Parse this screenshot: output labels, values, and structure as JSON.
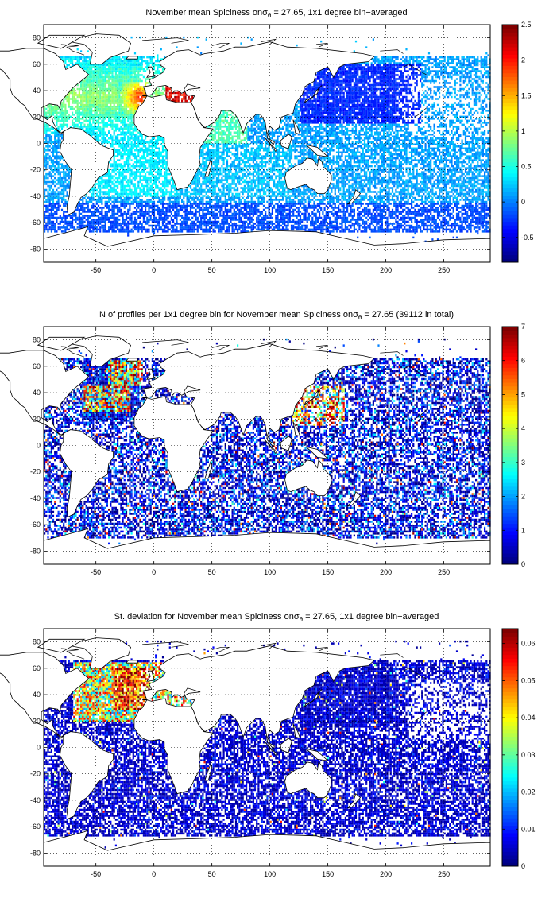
{
  "chart_data": [
    {
      "type": "heatmap",
      "title": "November mean Spiciness on σθ = 27.65, 1x1 degree bin−averaged",
      "title_parts": {
        "before": "November mean Spiciness on",
        "sigma": "σ",
        "sub": "θ",
        "after": " = 27.65, 1x1 degree bin−averaged"
      },
      "xlim": [
        -95,
        290
      ],
      "ylim": [
        -90,
        90
      ],
      "xticks": [
        -50,
        0,
        50,
        100,
        150,
        200,
        250
      ],
      "yticks": [
        -80,
        -60,
        -40,
        -20,
        0,
        20,
        40,
        60,
        80
      ],
      "grid": true,
      "colorbar": {
        "colormap": "jet",
        "range": [
          -0.85,
          2.5
        ],
        "ticks": [
          "-0.5",
          "0",
          "0.5",
          "1",
          "1.5",
          "2",
          "2.5"
        ],
        "tick_values": [
          -0.5,
          0,
          0.5,
          1,
          1.5,
          2,
          2.5
        ]
      }
    },
    {
      "type": "heatmap",
      "title": "N of profiles per 1x1 degree bin for November mean Spiciness on σθ = 27.65 (39112 in total)",
      "title_parts": {
        "before": "N of profiles per 1x1 degree bin for November mean Spiciness on",
        "sigma": "σ",
        "sub": "θ",
        "after": " = 27.65 (39112 in total)"
      },
      "xlim": [
        -95,
        290
      ],
      "ylim": [
        -90,
        90
      ],
      "xticks": [
        -50,
        0,
        50,
        100,
        150,
        200,
        250
      ],
      "yticks": [
        -80,
        -60,
        -40,
        -20,
        0,
        20,
        40,
        60,
        80
      ],
      "grid": true,
      "colorbar": {
        "colormap": "jet",
        "range": [
          0,
          7
        ],
        "ticks": [
          "0",
          "1",
          "2",
          "3",
          "4",
          "5",
          "6",
          "7"
        ],
        "tick_values": [
          0,
          1,
          2,
          3,
          4,
          5,
          6,
          7
        ]
      }
    },
    {
      "type": "heatmap",
      "title": "St. deviation for November mean Spiciness on σθ = 27.65, 1x1 degree bin−averaged",
      "title_parts": {
        "before": "St. deviation for November mean Spiciness on",
        "sigma": "σ",
        "sub": "θ",
        "after": " = 27.65, 1x1 degree bin−averaged"
      },
      "xlim": [
        -95,
        290
      ],
      "ylim": [
        -90,
        90
      ],
      "xticks": [
        -50,
        0,
        50,
        100,
        150,
        200,
        250
      ],
      "yticks": [
        -80,
        -60,
        -40,
        -20,
        0,
        20,
        40,
        60,
        80
      ],
      "grid": true,
      "colorbar": {
        "colormap": "jet",
        "range": [
          0,
          0.064
        ],
        "ticks": [
          "0",
          "0.01",
          "0.02",
          "0.03",
          "0.04",
          "0.05",
          "0.06"
        ],
        "tick_values": [
          0,
          0.01,
          0.02,
          0.03,
          0.04,
          0.05,
          0.06
        ]
      }
    }
  ]
}
